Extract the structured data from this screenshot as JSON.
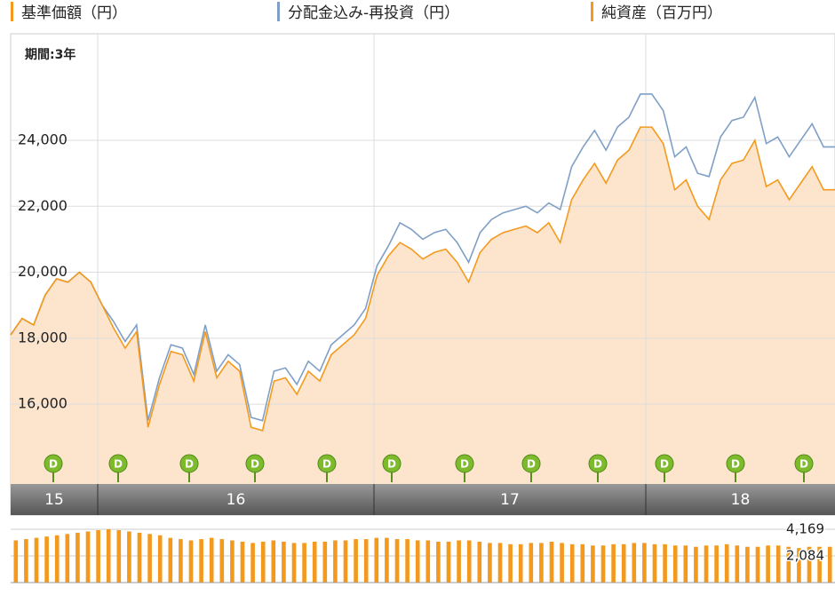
{
  "chart_data": {
    "type": "line",
    "period_label": "期間:3年",
    "ylim": [
      13580,
      27230
    ],
    "yticks": [
      {
        "value": 16000,
        "label": "16,000"
      },
      {
        "value": 18000,
        "label": "18,000"
      },
      {
        "value": 20000,
        "label": "20,000"
      },
      {
        "value": 22000,
        "label": "22,000"
      },
      {
        "value": 24000,
        "label": "24,000"
      }
    ],
    "grid": true,
    "periods": [
      "15",
      "16",
      "17",
      "18"
    ],
    "dividend_markers": [
      "D",
      "D",
      "D",
      "D",
      "D",
      "D",
      "D",
      "D",
      "D",
      "D",
      "D",
      "D"
    ],
    "series": [
      {
        "name": "基準価額（円）",
        "color": "#f39a1e",
        "fill": "#fde5cd",
        "values": [
          18100,
          18600,
          18400,
          19300,
          19800,
          19700,
          20000,
          19700,
          19000,
          18300,
          17700,
          18200,
          15300,
          16600,
          17600,
          17500,
          16700,
          18200,
          16800,
          17300,
          17000,
          15300,
          15200,
          16700,
          16800,
          16300,
          17000,
          16700,
          17500,
          17800,
          18100,
          18600,
          19900,
          20500,
          20900,
          20700,
          20400,
          20600,
          20700,
          20300,
          19700,
          20600,
          21000,
          21200,
          21300,
          21400,
          21200,
          21500,
          20900,
          22200,
          22800,
          23300,
          22700,
          23400,
          23700,
          24400,
          24400,
          23900,
          22500,
          22800,
          22000,
          21600,
          22800,
          23300,
          23400,
          24000,
          22600,
          22800,
          22200,
          22700,
          23200,
          22500,
          22500
        ]
      },
      {
        "name": "分配金込み-再投資（円）",
        "color": "#7f9fc6",
        "values": [
          18100,
          18600,
          18400,
          19300,
          19800,
          19700,
          20000,
          19700,
          19000,
          18500,
          17900,
          18400,
          15500,
          16800,
          17800,
          17700,
          16900,
          18400,
          17000,
          17500,
          17200,
          15600,
          15500,
          17000,
          17100,
          16600,
          17300,
          17000,
          17800,
          18100,
          18400,
          18900,
          20200,
          20800,
          21500,
          21300,
          21000,
          21200,
          21300,
          20900,
          20300,
          21200,
          21600,
          21800,
          21900,
          22000,
          21800,
          22100,
          21900,
          23200,
          23800,
          24300,
          23700,
          24400,
          24700,
          25400,
          25400,
          24900,
          23500,
          23800,
          23000,
          22900,
          24100,
          24600,
          24700,
          25300,
          23900,
          24100,
          23500,
          24000,
          24500,
          23800,
          23800
        ]
      }
    ],
    "net_assets": {
      "name": "純資産（百万円）",
      "color": "#f39a1e",
      "ylim": [
        0,
        4169
      ],
      "yticks": [
        {
          "value": 2084,
          "label": "2,084"
        },
        {
          "value": 4169,
          "label": "4,169"
        }
      ],
      "values": [
        3300,
        3400,
        3500,
        3600,
        3700,
        3800,
        3900,
        4000,
        4100,
        4169,
        4100,
        4000,
        3900,
        3800,
        3700,
        3500,
        3400,
        3300,
        3400,
        3500,
        3400,
        3300,
        3200,
        3100,
        3200,
        3300,
        3200,
        3100,
        3100,
        3200,
        3200,
        3300,
        3300,
        3400,
        3400,
        3500,
        3500,
        3400,
        3400,
        3300,
        3300,
        3200,
        3200,
        3300,
        3300,
        3200,
        3100,
        3100,
        3000,
        3000,
        3100,
        3100,
        3200,
        3100,
        3000,
        3000,
        2900,
        2900,
        3000,
        3000,
        3100,
        3100,
        3000,
        3000,
        2900,
        2900,
        2800,
        2900,
        2900,
        3000,
        2900,
        2800,
        2800,
        2900,
        2900,
        2800,
        2700,
        2800,
        2800,
        2800
      ]
    }
  }
}
